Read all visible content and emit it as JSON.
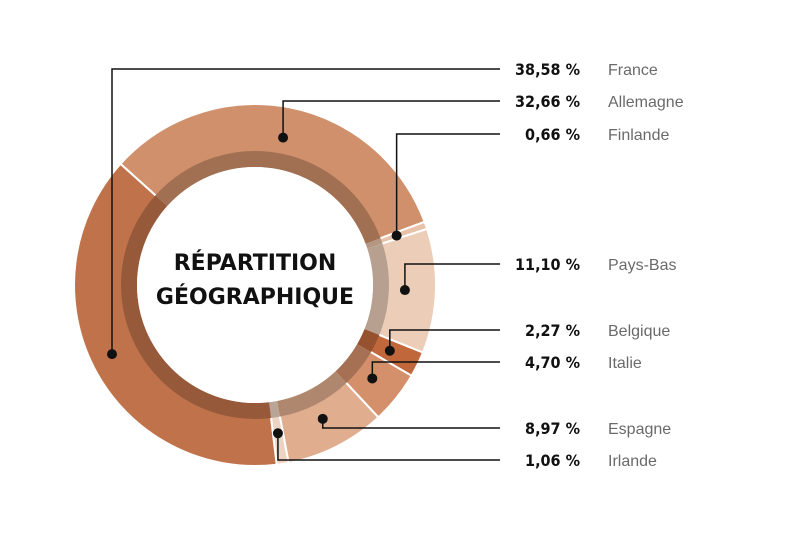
{
  "chart_data": {
    "type": "pie",
    "title_lines": [
      "RÉPARTITION",
      "GÉOGRAPHIQUE"
    ],
    "slices": [
      {
        "name": "France",
        "label": "38,58 %",
        "value": 38.58,
        "color": "#c0724a"
      },
      {
        "name": "Allemagne",
        "label": "32,66 %",
        "value": 32.66,
        "color": "#cf906b"
      },
      {
        "name": "Finlande",
        "label": "0,66 %",
        "value": 0.66,
        "color": "#e7c2a8"
      },
      {
        "name": "Pays-Bas",
        "label": "11,10 %",
        "value": 11.1,
        "color": "#ebcdb8"
      },
      {
        "name": "Belgique",
        "label": "2,27 %",
        "value": 2.27,
        "color": "#c0683c"
      },
      {
        "name": "Italie",
        "label": "4,70 %",
        "value": 4.7,
        "color": "#d48f6b"
      },
      {
        "name": "Espagne",
        "label": "8,97 %",
        "value": 8.97,
        "color": "#e0ad8e"
      },
      {
        "name": "Irlande",
        "label": "1,06 %",
        "value": 1.06,
        "color": "#ecd3c2"
      }
    ]
  }
}
